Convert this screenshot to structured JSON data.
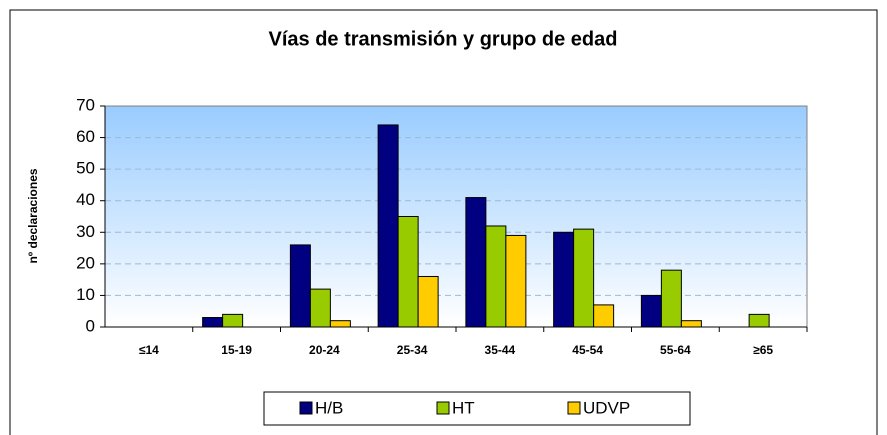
{
  "chart_data": {
    "type": "bar",
    "title": "Vías de transmisión y grupo de edad",
    "y_label": "nº declaraciones",
    "categories": [
      "≤14",
      "15-19",
      "20-24",
      "25-34",
      "35-44",
      "45-54",
      "55-64",
      "≥65"
    ],
    "series": [
      {
        "name": "H/B",
        "color": "#000080",
        "values": [
          0,
          3,
          26,
          64,
          41,
          30,
          10,
          0
        ]
      },
      {
        "name": "HT",
        "color": "#99cc00",
        "values": [
          0,
          4,
          12,
          35,
          32,
          31,
          18,
          4
        ]
      },
      {
        "name": "UDVP",
        "color": "#ffcc00",
        "values": [
          0,
          0,
          2,
          16,
          29,
          7,
          2,
          0
        ]
      }
    ],
    "ylim": [
      0,
      70
    ],
    "yticks": [
      0,
      10,
      20,
      30,
      40,
      50,
      60,
      70
    ],
    "grid": true,
    "legend": "bottom"
  }
}
